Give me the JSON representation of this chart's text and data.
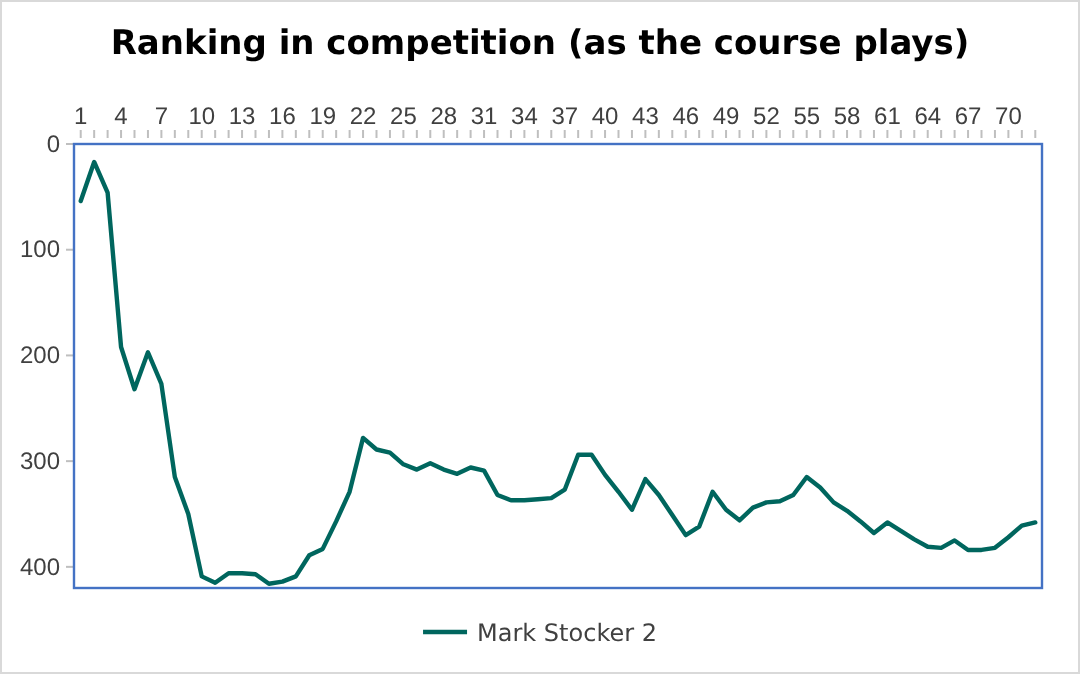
{
  "chart_data": {
    "type": "line",
    "title": "Ranking in competition (as the course plays)",
    "categories": [
      "1",
      null,
      null,
      "4",
      null,
      null,
      "7",
      null,
      null,
      "10",
      null,
      null,
      "13",
      null,
      null,
      "16",
      null,
      null,
      "19",
      null,
      null,
      "22",
      null,
      null,
      "25",
      null,
      null,
      "28",
      null,
      null,
      "31",
      null,
      null,
      "34",
      null,
      null,
      "37",
      null,
      null,
      "40",
      null,
      null,
      "43",
      null,
      null,
      "46",
      null,
      null,
      "49",
      null,
      null,
      "52",
      null,
      null,
      "55",
      null,
      null,
      "58",
      null,
      null,
      "61",
      null,
      null,
      "64",
      null,
      null,
      "67",
      null,
      null,
      "70",
      null,
      null
    ],
    "series": [
      {
        "name": "Mark Stocker 2",
        "color": "#00665e",
        "values": [
          54,
          17,
          46,
          192,
          232,
          197,
          227,
          315,
          350,
          409,
          415,
          406,
          406,
          407,
          416,
          414,
          409,
          389,
          383,
          357,
          329,
          278,
          289,
          292,
          303,
          308,
          302,
          308,
          312,
          306,
          309,
          332,
          337,
          337,
          336,
          335,
          327,
          294,
          294,
          313,
          329,
          346,
          317,
          332,
          351,
          370,
          362,
          329,
          346,
          356,
          344,
          339,
          338,
          332,
          315,
          325,
          339,
          347,
          357,
          368,
          358,
          366,
          374,
          381,
          382,
          375,
          384,
          384,
          382,
          372,
          361,
          358
        ]
      }
    ],
    "ylim": [
      420,
      0
    ],
    "yticks": [
      0,
      100,
      200,
      300,
      400
    ],
    "grid": false,
    "legend": "bottom",
    "marker": "none",
    "line_style": "solid"
  }
}
